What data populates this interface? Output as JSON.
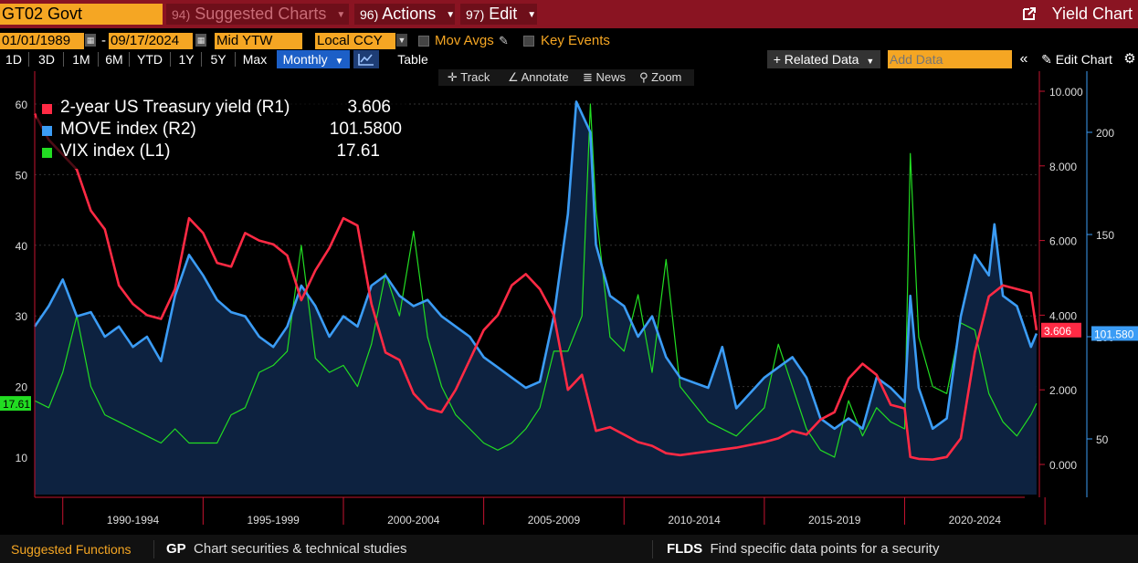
{
  "titlebar": {
    "ticker": "GT02 Govt",
    "suggested_num": "94)",
    "suggested_label": "Suggested Charts",
    "actions_num": "96)",
    "actions_label": "Actions",
    "edit_num": "97)",
    "edit_label": "Edit",
    "yield_chart_label": "Yield Chart",
    "colors": {
      "bar": "#8a1422",
      "field": "#f5a623"
    }
  },
  "controls": {
    "start_date": "01/01/1989",
    "end_date": "09/17/2024",
    "date_separator": "-",
    "pricing": "Mid YTW",
    "currency": "Local CCY",
    "mov_avgs": "Mov Avgs",
    "key_events": "Key Events"
  },
  "ranges": [
    "1D",
    "3D",
    "1M",
    "6M",
    "YTD",
    "1Y",
    "5Y",
    "Max"
  ],
  "periodicity": "Monthly",
  "table_label": "Table",
  "related_data": "+ Related Data",
  "add_data_placeholder": "Add Data",
  "edit_chart": "Edit Chart",
  "tools": {
    "track": "Track",
    "annotate": "Annotate",
    "news": "News",
    "zoom": "Zoom"
  },
  "legend": [
    {
      "name": "2-year US Treasury yield (R1)",
      "value": "3.606",
      "color": "#ff2a44"
    },
    {
      "name": "MOVE index (R2)",
      "value": "101.5800",
      "color": "#3b9cf5"
    },
    {
      "name": "VIX index (L1)",
      "value": "17.61",
      "color": "#22dd22"
    }
  ],
  "bottom": {
    "suggested": "Suggested Functions",
    "gp_key": "GP",
    "gp_desc": "Chart securities & technical studies",
    "flds_key": "FLDS",
    "flds_desc": "Find specific data points for a security"
  },
  "chart_data": {
    "type": "line",
    "x_range": [
      1989,
      2024.8
    ],
    "x_ticks": [
      "1990-1994",
      "1995-1999",
      "2000-2004",
      "2005-2009",
      "2010-2014",
      "2015-2019",
      "2020-2024"
    ],
    "left_axis": {
      "ticks": [
        "10",
        "20",
        "30",
        "40",
        "50",
        "60"
      ],
      "range": [
        5,
        65
      ]
    },
    "r1_axis": {
      "ticks": [
        "0.000",
        "2.000",
        "4.000",
        "6.000",
        "8.000",
        "10.000"
      ],
      "range": [
        -1,
        10
      ]
    },
    "r2_axis": {
      "ticks": [
        "50",
        "100",
        "150",
        "200"
      ],
      "range": [
        20,
        230
      ]
    },
    "last_values": {
      "r1": "3.606",
      "r2": "101.580",
      "l1": "17.61"
    },
    "series": [
      {
        "name": "2-year US Treasury yield (R1)",
        "axis": "r1",
        "color": "#ff2a44",
        "x": [
          1989,
          1989.5,
          1990,
          1990.5,
          1991,
          1991.5,
          1992,
          1992.5,
          1993,
          1993.5,
          1994,
          1994.5,
          1995,
          1995.5,
          1996,
          1996.5,
          1997,
          1997.5,
          1998,
          1998.5,
          1999,
          1999.5,
          2000,
          2000.5,
          2001,
          2001.5,
          2002,
          2002.5,
          2003,
          2003.5,
          2004,
          2004.5,
          2005,
          2005.5,
          2006,
          2006.5,
          2007,
          2007.5,
          2008,
          2008.5,
          2009,
          2009.5,
          2010,
          2010.5,
          2011,
          2011.5,
          2012,
          2013,
          2014,
          2015,
          2015.5,
          2016,
          2016.5,
          2017,
          2017.5,
          2018,
          2018.5,
          2019,
          2019.5,
          2020,
          2020.2,
          2020.5,
          2021,
          2021.5,
          2022,
          2022.5,
          2023,
          2023.5,
          2024,
          2024.5,
          2024.7
        ],
        "values": [
          9.4,
          8.7,
          8.3,
          7.9,
          6.8,
          6.3,
          4.8,
          4.3,
          4.0,
          3.9,
          4.7,
          6.6,
          6.2,
          5.4,
          5.3,
          6.2,
          6.0,
          5.9,
          5.6,
          4.4,
          5.2,
          5.8,
          6.6,
          6.4,
          4.3,
          3.0,
          2.8,
          1.9,
          1.5,
          1.4,
          2.0,
          2.8,
          3.6,
          4.0,
          4.8,
          5.1,
          4.7,
          4.0,
          2.0,
          2.4,
          0.9,
          1.0,
          0.8,
          0.6,
          0.5,
          0.3,
          0.25,
          0.35,
          0.45,
          0.6,
          0.7,
          0.9,
          0.8,
          1.2,
          1.4,
          2.3,
          2.7,
          2.4,
          1.6,
          1.5,
          0.2,
          0.15,
          0.13,
          0.2,
          0.7,
          3.0,
          4.5,
          4.8,
          4.7,
          4.6,
          3.6
        ]
      },
      {
        "name": "MOVE index (R2)",
        "axis": "r2",
        "color": "#3b9cf5",
        "x": [
          1989,
          1989.5,
          1990,
          1990.5,
          1991,
          1991.5,
          1992,
          1992.5,
          1993,
          1993.5,
          1994,
          1994.5,
          1995,
          1995.5,
          1996,
          1996.5,
          1997,
          1997.5,
          1998,
          1998.5,
          1999,
          1999.5,
          2000,
          2000.5,
          2001,
          2001.5,
          2002,
          2002.5,
          2003,
          2003.5,
          2004,
          2004.5,
          2005,
          2005.5,
          2006,
          2006.5,
          2007,
          2007.5,
          2008,
          2008.3,
          2008.8,
          2009,
          2009.5,
          2010,
          2010.5,
          2011,
          2011.5,
          2012,
          2013,
          2013.5,
          2014,
          2015,
          2015.5,
          2016,
          2016.5,
          2017,
          2017.5,
          2018,
          2018.5,
          2019,
          2019.5,
          2020,
          2020.2,
          2020.5,
          2021,
          2021.5,
          2022,
          2022.5,
          2023,
          2023.2,
          2023.5,
          2024,
          2024.5,
          2024.7
        ],
        "values": [
          105,
          115,
          128,
          110,
          112,
          100,
          105,
          95,
          100,
          88,
          120,
          140,
          130,
          118,
          112,
          110,
          100,
          95,
          105,
          125,
          115,
          100,
          110,
          105,
          125,
          130,
          120,
          115,
          118,
          110,
          105,
          100,
          90,
          85,
          80,
          75,
          78,
          110,
          160,
          215,
          200,
          145,
          120,
          115,
          100,
          110,
          90,
          80,
          75,
          95,
          65,
          80,
          85,
          90,
          80,
          60,
          55,
          60,
          55,
          80,
          75,
          68,
          120,
          75,
          55,
          60,
          110,
          140,
          130,
          155,
          120,
          115,
          95,
          101.58
        ]
      },
      {
        "name": "VIX index (L1)",
        "axis": "left",
        "color": "#22dd22",
        "x": [
          1989,
          1989.5,
          1990,
          1990.5,
          1991,
          1991.5,
          1992,
          1992.5,
          1993,
          1993.5,
          1994,
          1994.5,
          1995,
          1995.5,
          1996,
          1996.5,
          1997,
          1997.5,
          1998,
          1998.5,
          1999,
          1999.5,
          2000,
          2000.5,
          2001,
          2001.5,
          2002,
          2002.5,
          2003,
          2003.5,
          2004,
          2004.5,
          2005,
          2005.5,
          2006,
          2006.5,
          2007,
          2007.5,
          2008,
          2008.5,
          2008.8,
          2009,
          2009.5,
          2010,
          2010.5,
          2011,
          2011.5,
          2012,
          2013,
          2014,
          2015,
          2015.5,
          2016,
          2016.5,
          2017,
          2017.5,
          2018,
          2018.5,
          2019,
          2019.5,
          2020,
          2020.2,
          2020.5,
          2021,
          2021.5,
          2022,
          2022.5,
          2023,
          2023.5,
          2024,
          2024.5,
          2024.7
        ],
        "values": [
          18,
          17,
          22,
          30,
          20,
          16,
          15,
          14,
          13,
          12,
          14,
          12,
          12,
          12,
          16,
          17,
          22,
          23,
          25,
          40,
          24,
          22,
          23,
          20,
          26,
          36,
          30,
          42,
          27,
          20,
          16,
          14,
          12,
          11,
          12,
          14,
          17,
          25,
          25,
          30,
          60,
          45,
          27,
          25,
          33,
          22,
          38,
          20,
          15,
          13,
          17,
          26,
          20,
          14,
          11,
          10,
          18,
          13,
          17,
          15,
          14,
          53,
          27,
          20,
          19,
          29,
          28,
          19,
          15,
          13,
          16,
          17.61
        ]
      }
    ]
  }
}
